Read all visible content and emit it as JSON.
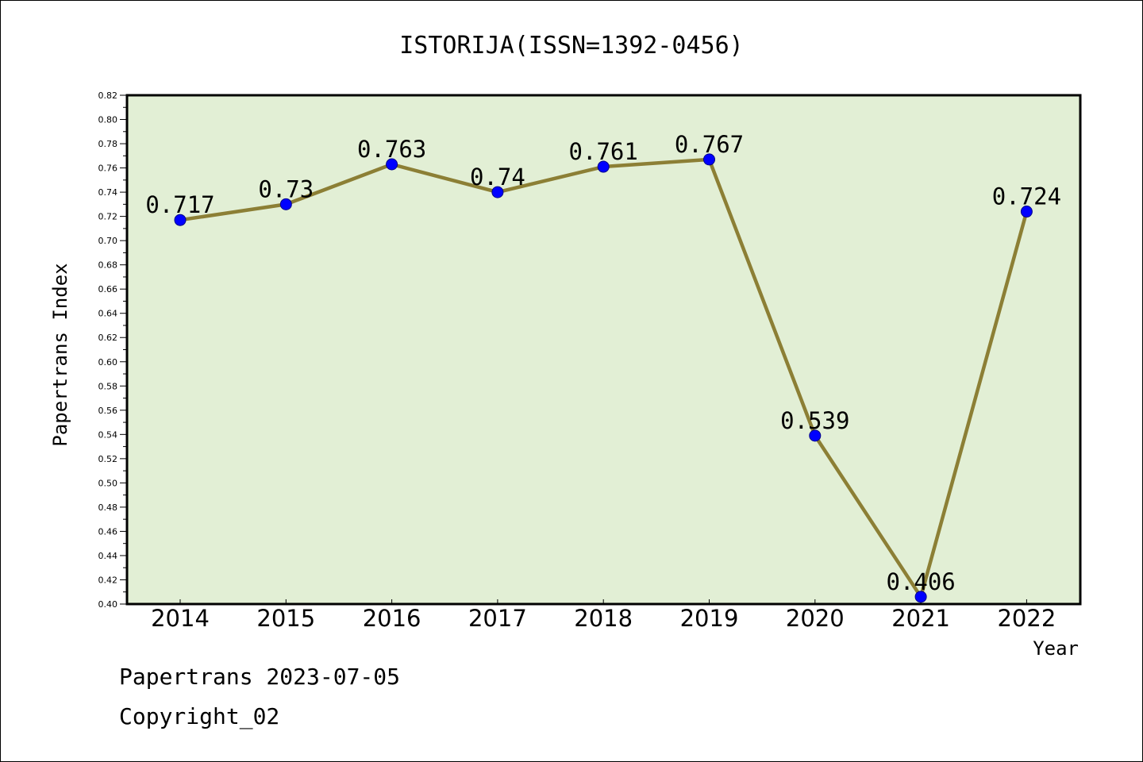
{
  "chart_data": {
    "type": "line",
    "title": "ISTORIJA(ISSN=1392-0456)",
    "xlabel": "Year",
    "ylabel": "Papertrans Index",
    "categories": [
      "2014",
      "2015",
      "2016",
      "2017",
      "2018",
      "2019",
      "2020",
      "2021",
      "2022"
    ],
    "values": [
      0.717,
      0.73,
      0.763,
      0.74,
      0.761,
      0.767,
      0.539,
      0.406,
      0.724
    ],
    "labels": [
      "0.717",
      "0.73",
      "0.763",
      "0.74",
      "0.761",
      "0.767",
      "0.539",
      "0.406",
      "0.724"
    ],
    "ylim": [
      0.4,
      0.82
    ],
    "yticks": [
      "0.40",
      "0.42",
      "0.44",
      "0.46",
      "0.48",
      "0.50",
      "0.52",
      "0.54",
      "0.56",
      "0.58",
      "0.60",
      "0.62",
      "0.64",
      "0.66",
      "0.68",
      "0.70",
      "0.72",
      "0.74",
      "0.76",
      "0.78",
      "0.80",
      "0.82"
    ],
    "grid": false,
    "colors": {
      "plot_background": "#e2efd5",
      "line": "#8c7f35",
      "marker": "#0000ff"
    }
  },
  "footer": {
    "date_line": "Papertrans 2023-07-05",
    "copyright_line": "Copyright_02"
  }
}
